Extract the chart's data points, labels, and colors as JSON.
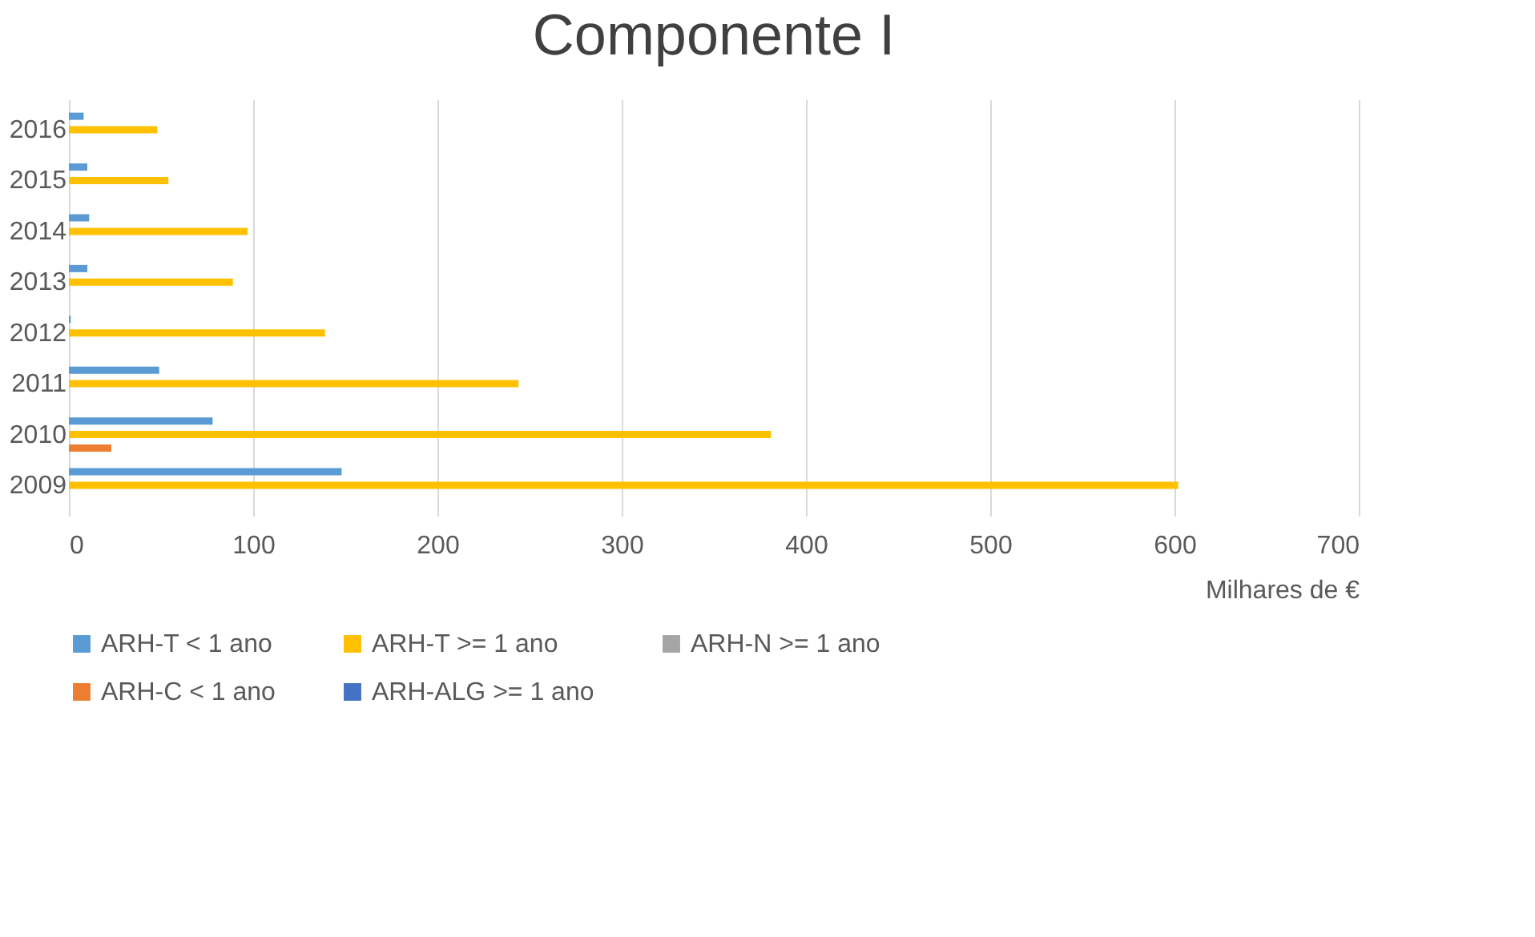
{
  "chart_data": {
    "type": "bar",
    "orientation": "horizontal",
    "title": "Componente I",
    "xlabel": "Milhares de €",
    "categories": [
      "2016",
      "2015",
      "2014",
      "2013",
      "2012",
      "2011",
      "2010",
      "2009"
    ],
    "series": [
      {
        "name": "ARH-T < 1 ano",
        "color": "#5b9bd5",
        "values": [
          8,
          10,
          11,
          10,
          1,
          49,
          78,
          148
        ]
      },
      {
        "name": "ARH-T >= 1 ano",
        "color": "#ffc000",
        "values": [
          48,
          54,
          97,
          89,
          139,
          244,
          381,
          602
        ]
      },
      {
        "name": "ARH-N >= 1 ano",
        "color": "#a5a5a5",
        "values": [
          null,
          null,
          null,
          null,
          null,
          null,
          null,
          null
        ]
      },
      {
        "name": "ARH-C < 1 ano",
        "color": "#ed7d31",
        "values": [
          null,
          null,
          null,
          null,
          null,
          null,
          23,
          null
        ]
      },
      {
        "name": "ARH-ALG >= 1 ano",
        "color": "#4472c4",
        "values": [
          null,
          null,
          null,
          null,
          null,
          null,
          null,
          null
        ]
      }
    ],
    "xlim": [
      0,
      700
    ],
    "xticks": [
      0,
      100,
      200,
      300,
      400,
      500,
      600,
      700
    ],
    "grid": "x",
    "legend": "bottom"
  }
}
